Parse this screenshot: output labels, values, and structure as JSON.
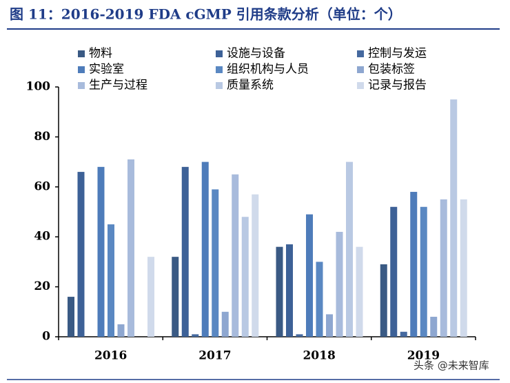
{
  "chart_data": {
    "type": "bar",
    "title": "图 11：2016-2019 FDA cGMP 引用条款分析（单位：个）",
    "watermark": "头条 @未来智库",
    "categories": [
      "2016",
      "2017",
      "2018",
      "2019"
    ],
    "ylim": [
      0,
      100
    ],
    "yticks": [
      0,
      20,
      40,
      60,
      80,
      100
    ],
    "series": [
      {
        "name": "物料",
        "color": "#3a5a84",
        "values": [
          16,
          32,
          36,
          29
        ]
      },
      {
        "name": "设施与设备",
        "color": "#3d6197",
        "values": [
          66,
          68,
          37,
          52
        ]
      },
      {
        "name": "控制与发运",
        "color": "#45699f",
        "values": [
          0,
          1,
          1,
          2
        ]
      },
      {
        "name": "实验室",
        "color": "#4e7cba",
        "values": [
          68,
          70,
          49,
          58
        ]
      },
      {
        "name": "组织机构与人员",
        "color": "#5a88c2",
        "values": [
          45,
          59,
          30,
          52
        ]
      },
      {
        "name": "包装标签",
        "color": "#8ea7d0",
        "values": [
          5,
          10,
          9,
          8
        ]
      },
      {
        "name": "生产与过程",
        "color": "#a8bbdc",
        "values": [
          71,
          65,
          42,
          55
        ]
      },
      {
        "name": "质量系统",
        "color": "#b9c9e3",
        "values": [
          0,
          48,
          70,
          95
        ]
      },
      {
        "name": "记录与报告",
        "color": "#d0daeb",
        "values": [
          32,
          57,
          36,
          55
        ]
      }
    ]
  }
}
